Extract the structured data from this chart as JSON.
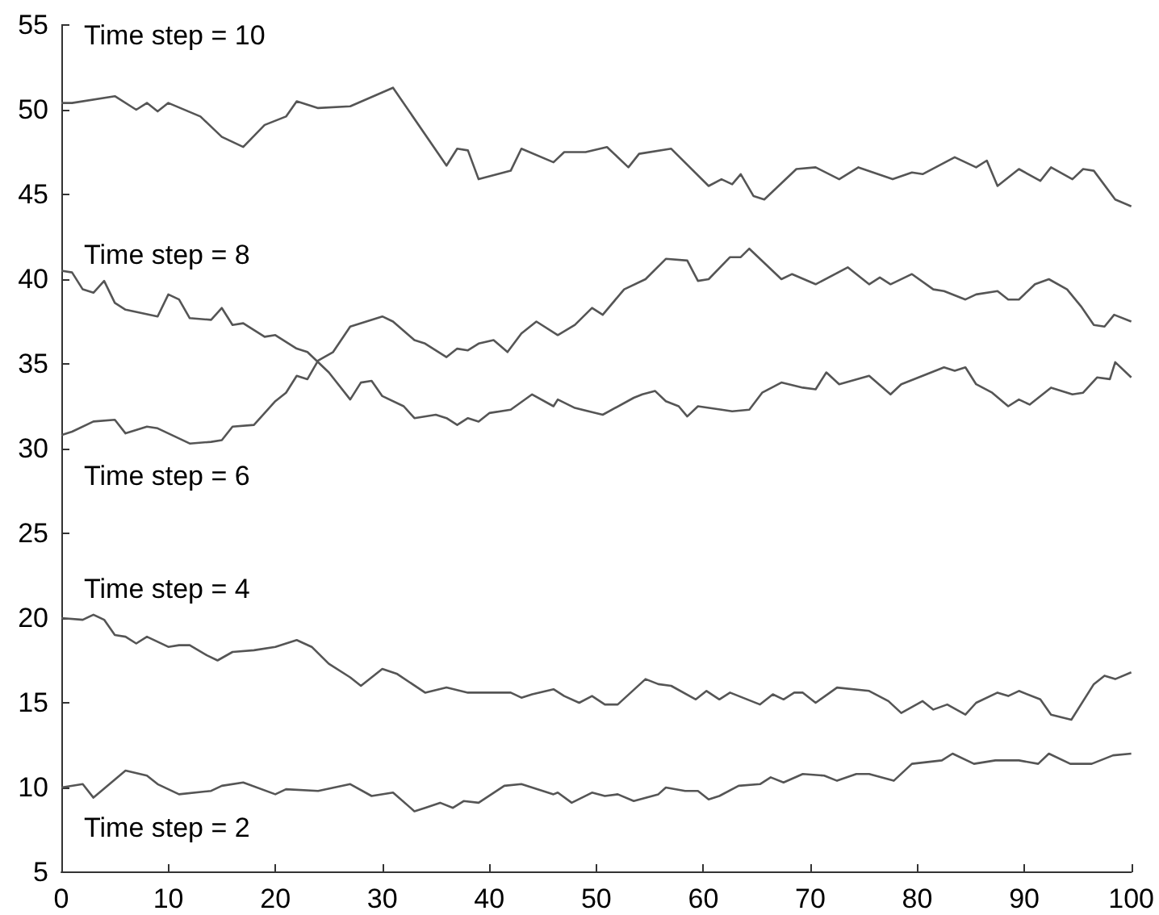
{
  "chart_data": {
    "type": "line",
    "xlim": [
      0,
      100
    ],
    "xticks": [
      0,
      10,
      20,
      30,
      40,
      50,
      60,
      70,
      80,
      90,
      100
    ],
    "ylim": [
      5,
      55
    ],
    "yticks": [
      5,
      10,
      15,
      20,
      25,
      30,
      35,
      40,
      45,
      50,
      55
    ],
    "grid": false,
    "marker": "none",
    "line_style": "solid",
    "annotations": [
      "Time step = 10",
      "Time step = 8",
      "Time step = 6",
      "Time step = 4",
      "Time step = 2"
    ],
    "series": [
      {
        "color": "#555555",
        "x": [
          0,
          1,
          5,
          7,
          8,
          9,
          10,
          13,
          15,
          17,
          19,
          21,
          22,
          24,
          27,
          31,
          36,
          37,
          38,
          39,
          42,
          43,
          46,
          47,
          49,
          51,
          53,
          54,
          57,
          60.5,
          61.7,
          62.7,
          63.5,
          64.7,
          65.7,
          68.7,
          70.5,
          72.7,
          74.5,
          77.7,
          79.5,
          80.5,
          83.5,
          85.5,
          86.5,
          87.5,
          89.5,
          91.5,
          92.5,
          94.5,
          95.5,
          96.5,
          98.5,
          100
        ],
        "values": [
          50.4,
          50.4,
          50.8,
          50.0,
          50.4,
          49.9,
          50.4,
          49.6,
          48.4,
          47.8,
          49.1,
          49.6,
          50.5,
          50.1,
          50.2,
          51.3,
          46.7,
          47.7,
          47.6,
          45.9,
          46.4,
          47.7,
          46.9,
          47.5,
          47.5,
          47.8,
          46.6,
          47.4,
          47.7,
          45.5,
          45.9,
          45.6,
          46.2,
          44.9,
          44.7,
          46.5,
          46.6,
          45.9,
          46.6,
          45.9,
          46.3,
          46.2,
          47.2,
          46.6,
          47.0,
          45.5,
          46.5,
          45.8,
          46.6,
          45.9,
          46.5,
          46.4,
          44.7,
          44.3
        ]
      },
      {
        "color": "#555555",
        "x": [
          0,
          1,
          2,
          3,
          4,
          5,
          6,
          9,
          10,
          11,
          12,
          14,
          15,
          16,
          17,
          19,
          20,
          22,
          23,
          25,
          27,
          28,
          29,
          30,
          32,
          33,
          35,
          36,
          37,
          38,
          39,
          40,
          42,
          44,
          46,
          46.4,
          48,
          50.6,
          53.5,
          54.3,
          55.5,
          56.5,
          57.7,
          58.5,
          59.5,
          61.7,
          62.7,
          64.3,
          65.5,
          67.3,
          69.3,
          70.5,
          71.5,
          72.7,
          75.5,
          77.5,
          78.5,
          80.5,
          82.5,
          83.5,
          84.5,
          85.5,
          87,
          88.5,
          89.5,
          90.5,
          92.5,
          94.5,
          95.5,
          96.8,
          98,
          98.5,
          100
        ],
        "values": [
          40.5,
          40.4,
          39.4,
          39.2,
          39.9,
          38.6,
          38.2,
          37.8,
          39.1,
          38.8,
          37.7,
          37.6,
          38.3,
          37.3,
          37.4,
          36.6,
          36.7,
          35.9,
          35.7,
          34.5,
          32.9,
          33.9,
          34.0,
          33.1,
          32.5,
          31.8,
          32.0,
          31.8,
          31.4,
          31.8,
          31.6,
          32.1,
          32.3,
          33.2,
          32.5,
          32.9,
          32.4,
          32.0,
          33.0,
          33.2,
          33.4,
          32.8,
          32.5,
          31.9,
          32.5,
          32.3,
          32.2,
          32.3,
          33.3,
          33.9,
          33.6,
          33.5,
          34.5,
          33.8,
          34.3,
          33.2,
          33.8,
          34.3,
          34.8,
          34.6,
          34.8,
          33.8,
          33.3,
          32.5,
          32.9,
          32.6,
          33.6,
          33.2,
          33.3,
          34.2,
          34.1,
          35.1,
          34.2
        ]
      },
      {
        "color": "#555555",
        "x": [
          0,
          1,
          3,
          5,
          6,
          8,
          9,
          12,
          14,
          15,
          16,
          18,
          20,
          21,
          22,
          23,
          24,
          25.4,
          27,
          30,
          31,
          33,
          34,
          36,
          37,
          38,
          39,
          40.4,
          41.7,
          43,
          44.4,
          46.4,
          48,
          49.6,
          50.6,
          52.6,
          54.6,
          56.5,
          58.5,
          59.5,
          60.5,
          62.5,
          63.5,
          64.3,
          67.3,
          68.3,
          70.5,
          73.5,
          75.5,
          76.5,
          77.5,
          79.5,
          81.5,
          82.5,
          84.5,
          85.5,
          87.5,
          88.5,
          89.5,
          91,
          92.3,
          94,
          95.3,
          96.5,
          97.5,
          98.4,
          100
        ],
        "values": [
          30.8,
          31.0,
          31.6,
          31.7,
          30.9,
          31.3,
          31.2,
          30.3,
          30.4,
          30.5,
          31.3,
          31.4,
          32.8,
          33.3,
          34.3,
          34.1,
          35.2,
          35.7,
          37.2,
          37.8,
          37.5,
          36.4,
          36.2,
          35.4,
          35.9,
          35.8,
          36.2,
          36.4,
          35.7,
          36.8,
          37.5,
          36.7,
          37.3,
          38.3,
          37.9,
          39.4,
          40.0,
          41.2,
          41.1,
          39.9,
          40.0,
          41.3,
          41.3,
          41.8,
          40.0,
          40.3,
          39.7,
          40.7,
          39.7,
          40.1,
          39.7,
          40.3,
          39.4,
          39.3,
          38.8,
          39.1,
          39.3,
          38.8,
          38.8,
          39.7,
          40.0,
          39.4,
          38.4,
          37.3,
          37.2,
          37.9,
          37.5
        ]
      },
      {
        "color": "#555555",
        "x": [
          0,
          2,
          3,
          4,
          5,
          6,
          7,
          8,
          10,
          11,
          12,
          13.6,
          14.6,
          16,
          18,
          20,
          22,
          23.4,
          25,
          27,
          28,
          30,
          31.4,
          34,
          36,
          38,
          40,
          42,
          43,
          44,
          46,
          47,
          48.4,
          49.6,
          50.8,
          52,
          54.6,
          55.8,
          57,
          59.3,
          60.3,
          61.5,
          62.5,
          65.3,
          66.5,
          67.5,
          68.5,
          69.3,
          70.5,
          72.5,
          75.5,
          77.3,
          78.5,
          80.5,
          81.5,
          82.8,
          84.5,
          85.5,
          87.5,
          88.5,
          89.5,
          91.5,
          92.5,
          94.4,
          96.5,
          97.5,
          98.5,
          100
        ],
        "values": [
          20.0,
          19.9,
          20.2,
          19.9,
          19.0,
          18.9,
          18.5,
          18.9,
          18.3,
          18.4,
          18.4,
          17.8,
          17.5,
          18.0,
          18.1,
          18.3,
          18.7,
          18.3,
          17.3,
          16.5,
          16.0,
          17.0,
          16.7,
          15.6,
          15.9,
          15.6,
          15.6,
          15.6,
          15.3,
          15.5,
          15.8,
          15.4,
          15.0,
          15.4,
          14.9,
          14.9,
          16.4,
          16.1,
          16.0,
          15.2,
          15.7,
          15.2,
          15.6,
          14.9,
          15.5,
          15.2,
          15.6,
          15.6,
          15.0,
          15.9,
          15.7,
          15.1,
          14.4,
          15.1,
          14.6,
          14.9,
          14.3,
          15.0,
          15.6,
          15.4,
          15.7,
          15.2,
          14.3,
          14.0,
          16.1,
          16.6,
          16.4,
          16.8
        ]
      },
      {
        "color": "#555555",
        "x": [
          0,
          2,
          3,
          6,
          8,
          9,
          11,
          14,
          15,
          17,
          20,
          21,
          24,
          27,
          29,
          31,
          33,
          34,
          35.4,
          36.6,
          37.6,
          39,
          41.4,
          43,
          46,
          46.4,
          47.7,
          49.6,
          50.8,
          52,
          53.5,
          55.8,
          56.5,
          58.3,
          59.5,
          60.5,
          61.5,
          63.3,
          65.3,
          66.3,
          67.5,
          69.3,
          71.3,
          72.5,
          74.3,
          75.5,
          77.8,
          79.5,
          82.3,
          83.3,
          85.3,
          87.3,
          89.5,
          91.3,
          92.3,
          94.3,
          96.3,
          98.3,
          100
        ],
        "values": [
          10.0,
          10.2,
          9.4,
          11.0,
          10.7,
          10.2,
          9.6,
          9.8,
          10.1,
          10.3,
          9.6,
          9.9,
          9.8,
          10.2,
          9.5,
          9.7,
          8.6,
          8.8,
          9.1,
          8.8,
          9.2,
          9.1,
          10.1,
          10.2,
          9.6,
          9.7,
          9.1,
          9.7,
          9.5,
          9.6,
          9.2,
          9.6,
          10.0,
          9.8,
          9.8,
          9.3,
          9.5,
          10.1,
          10.2,
          10.6,
          10.3,
          10.8,
          10.7,
          10.4,
          10.8,
          10.8,
          10.4,
          11.4,
          11.6,
          12.0,
          11.4,
          11.6,
          11.6,
          11.4,
          12.0,
          11.4,
          11.4,
          11.9,
          12.0
        ]
      }
    ]
  }
}
